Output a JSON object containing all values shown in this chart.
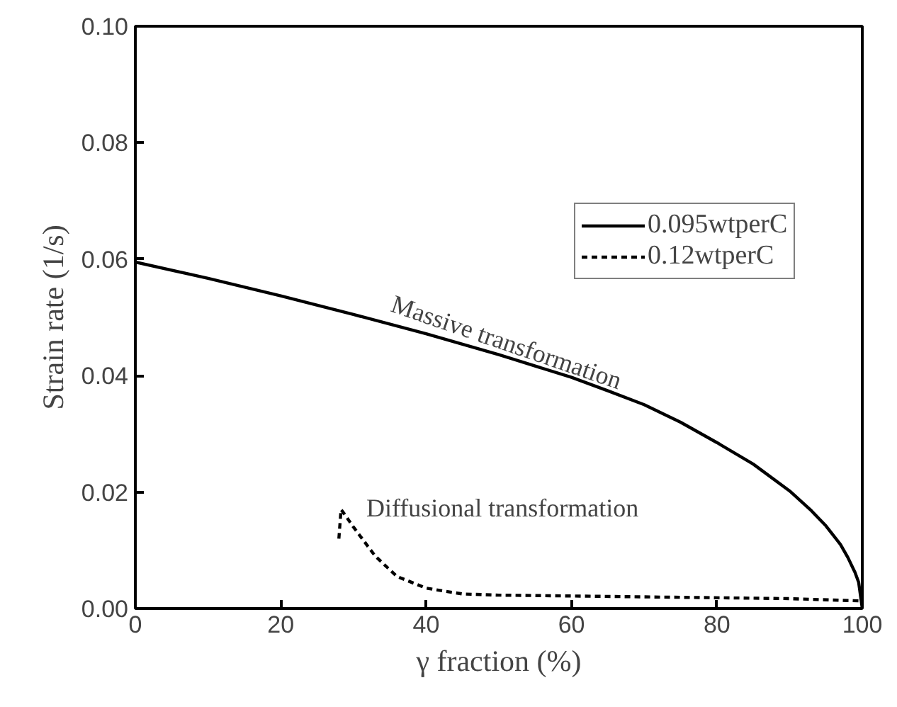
{
  "chart_data": {
    "type": "line",
    "xlabel": "γ fraction (%)",
    "ylabel": "Strain rate (1/s)",
    "xlim": [
      0,
      100
    ],
    "ylim": [
      0,
      0.1
    ],
    "xticks": [
      0,
      20,
      40,
      60,
      80,
      100
    ],
    "yticks": [
      {
        "value": 0,
        "label": "0.00"
      },
      0.02,
      0.04,
      0.06,
      0.08,
      {
        "value": 0.1,
        "label": "0.10"
      }
    ],
    "grid": false,
    "legend": "right",
    "marker": "none",
    "series": [
      {
        "name": "0.095wtperC",
        "color": "#000000",
        "line_style": "solid",
        "x": [
          0,
          10,
          20,
          30,
          40,
          50,
          60,
          65,
          70,
          75,
          80,
          85,
          90,
          93,
          95,
          97,
          98,
          99,
          99.5,
          100
        ],
        "values": [
          0.0595,
          0.0567,
          0.0537,
          0.0505,
          0.0472,
          0.0436,
          0.0397,
          0.0374,
          0.035,
          0.032,
          0.0285,
          0.0248,
          0.0202,
          0.0168,
          0.0142,
          0.011,
          0.0088,
          0.0062,
          0.0045,
          0.0
        ]
      },
      {
        "name": "0.12wtperC",
        "color": "#000000",
        "line_style": "dashed",
        "x": [
          28,
          28.3,
          28.6,
          30,
          33,
          36,
          40,
          45,
          50,
          70,
          90,
          100
        ],
        "values": [
          0.012,
          0.017,
          0.0165,
          0.014,
          0.009,
          0.0055,
          0.0035,
          0.0025,
          0.0023,
          0.002,
          0.0017,
          0.0013
        ]
      }
    ],
    "annotations": [
      "Massive transformation",
      "Diffusional transformation"
    ]
  }
}
